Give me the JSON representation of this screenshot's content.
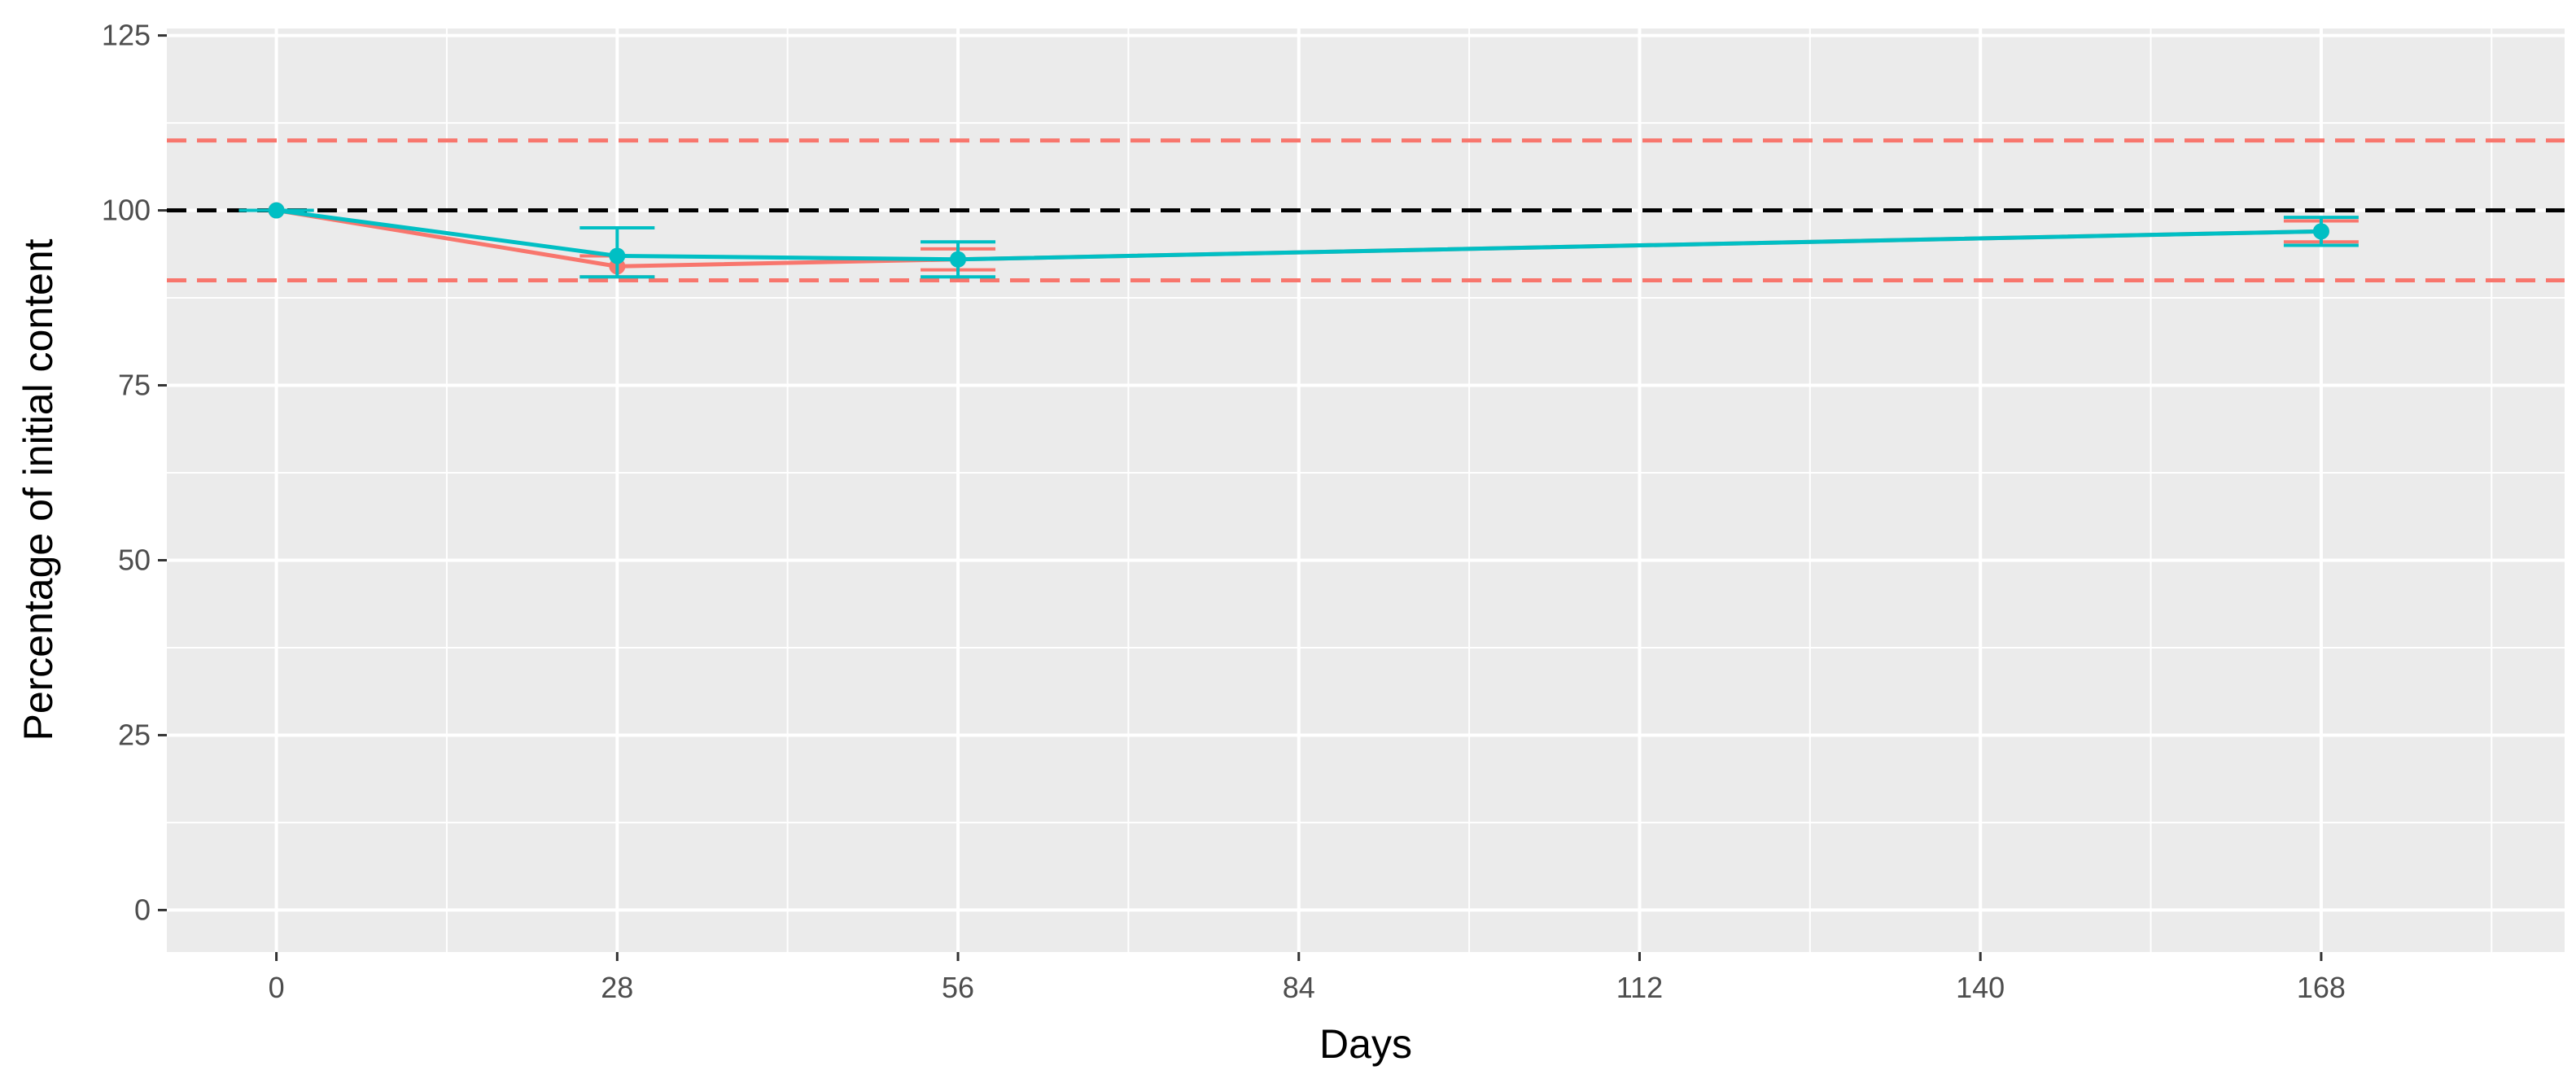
{
  "chart_data": {
    "type": "line",
    "title": "",
    "xlabel": "Days",
    "ylabel": "Percentage of initial content",
    "x_ticks": [
      0,
      28,
      56,
      84,
      112,
      140,
      168
    ],
    "y_ticks": [
      0,
      25,
      50,
      75,
      100,
      125
    ],
    "xlim": [
      -9,
      188
    ],
    "ylim": [
      -6,
      126
    ],
    "grid": true,
    "legend": "none",
    "reference_lines": [
      {
        "y": 110,
        "color": "#f8766d",
        "style": "dashed"
      },
      {
        "y": 100,
        "color": "#000000",
        "style": "dashed"
      },
      {
        "y": 90,
        "color": "#f8766d",
        "style": "dashed"
      }
    ],
    "series": [
      {
        "color": "#f8766d",
        "x": [
          0,
          28,
          56,
          168
        ],
        "y": [
          100,
          92,
          93,
          97
        ],
        "y_err_low": [
          100,
          90.5,
          91.5,
          95.5
        ],
        "y_err_high": [
          100,
          93.5,
          94.5,
          98.5
        ]
      },
      {
        "color": "#00bfc4",
        "x": [
          0,
          28,
          56,
          168
        ],
        "y": [
          100,
          93.5,
          93,
          97
        ],
        "y_err_low": [
          100,
          90.5,
          90.5,
          95
        ],
        "y_err_high": [
          100,
          97.5,
          95.5,
          99
        ]
      }
    ]
  }
}
